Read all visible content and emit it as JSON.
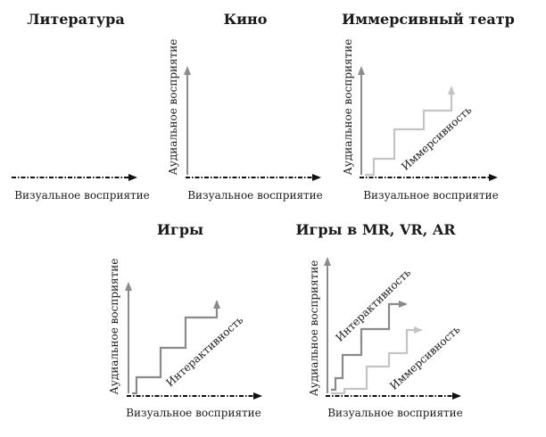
{
  "panels": {
    "literature": {
      "title": "Литература",
      "x_label": "Визуальное восприятие"
    },
    "cinema": {
      "title": "Кино",
      "x_label": "Визуальное восприятие",
      "y_label": "Аудиальное восприятие"
    },
    "immersive_theatre": {
      "title": "Иммерсивный театр",
      "x_label": "Визуальное восприятие",
      "y_label": "Аудиальное восприятие",
      "diagonal_label": "Иммерсивность"
    },
    "games": {
      "title": "Игры",
      "x_label": "Визуальное восприятие",
      "y_label": "Аудиальное восприятие",
      "diagonal_label": "Интерактивность"
    },
    "games_xr": {
      "title": "Игры в MR, VR, AR",
      "x_label": "Визуальное восприятие",
      "y_label": "Аудиальное восприятие",
      "diagonal_label_1": "Интерактивность",
      "diagonal_label_2": "Иммерсивность"
    }
  },
  "colors": {
    "axis": "#111111",
    "vertical_arrow": "#8c8c8c",
    "step_dark": "#8a8a8a",
    "step_light": "#c4c4c4"
  }
}
